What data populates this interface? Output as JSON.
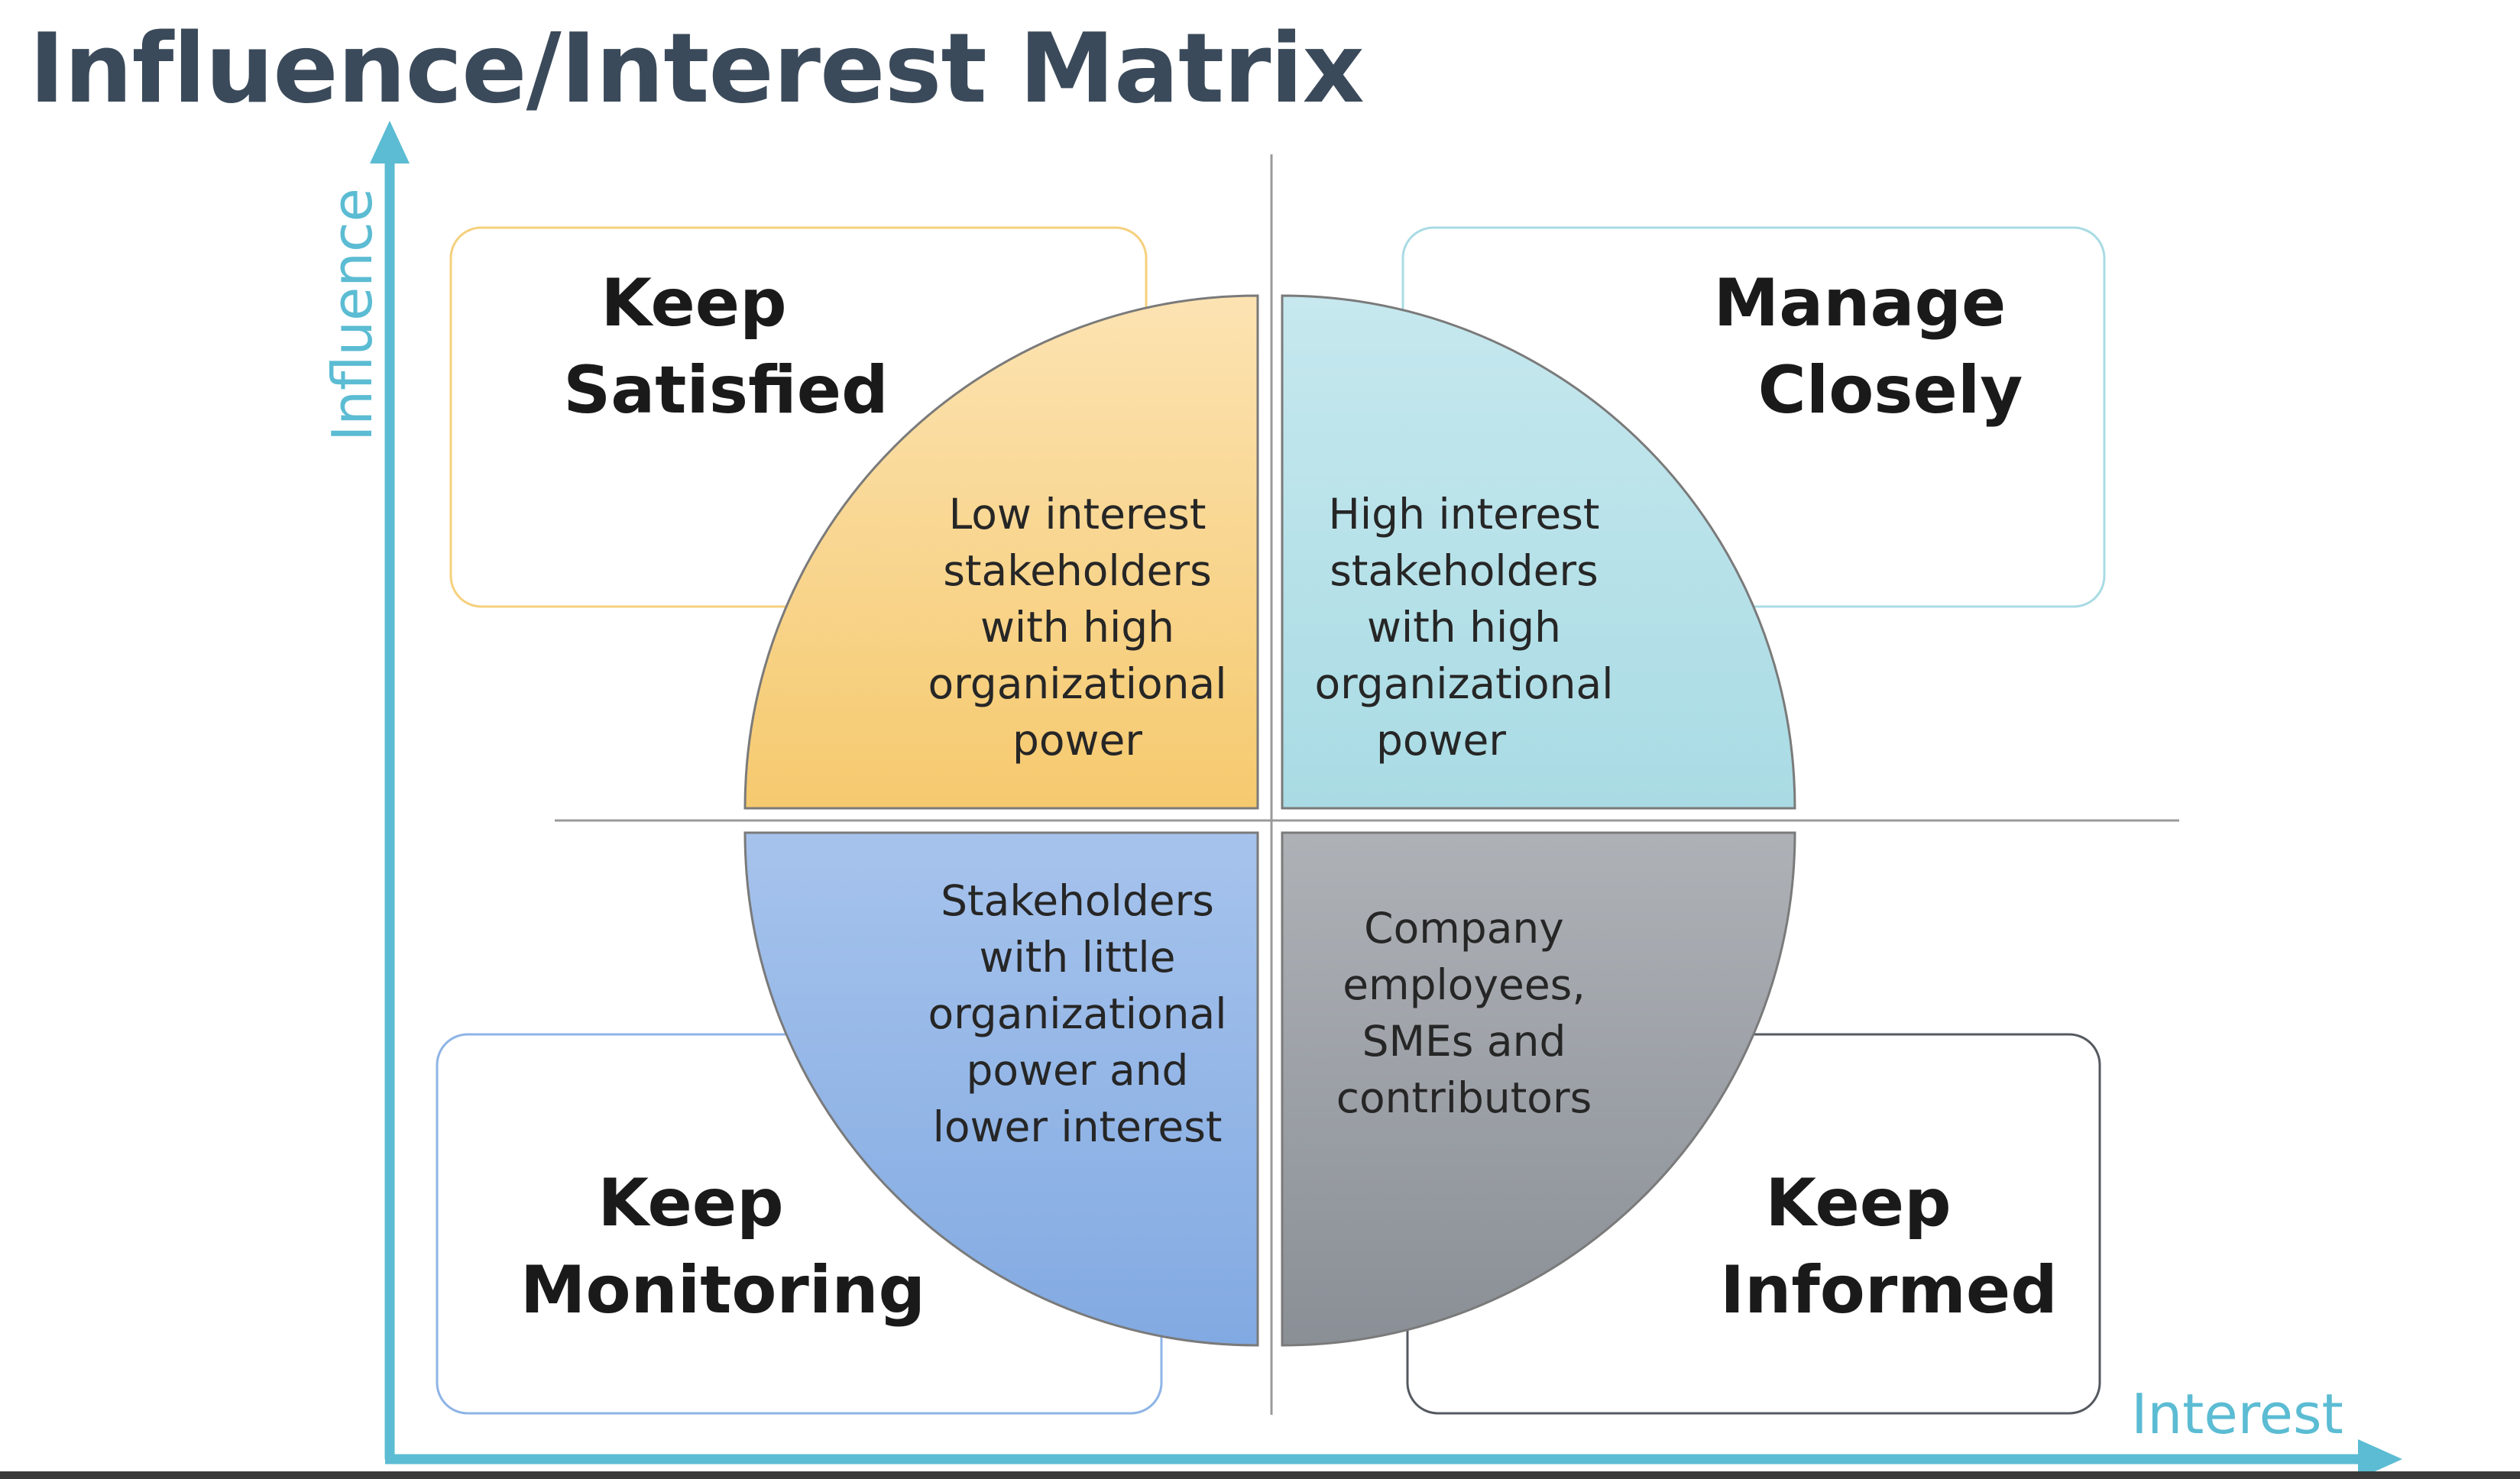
{
  "title": "Influence/Interest Matrix",
  "colors": {
    "title": "#3b4a5a",
    "axis": "#5bbcd3",
    "keep_satisfied": "#f5c96e",
    "manage_closely": "#a9dbe4",
    "keep_monitoring": "#8eb4e6",
    "keep_informed": "#9ea2a8"
  },
  "axes": {
    "y_label": "Influence",
    "x_label": "Interest"
  },
  "quadrants": {
    "top_left": {
      "title_lines": [
        "Keep",
        "Satisfied"
      ],
      "desc_lines": [
        "Low interest",
        "stakeholders",
        "with high",
        "organizational",
        "power"
      ]
    },
    "top_right": {
      "title_lines": [
        "Manage",
        "Closely"
      ],
      "desc_lines": [
        "High interest",
        "stakeholders",
        "with high",
        "organizational",
        "power"
      ]
    },
    "bottom_left": {
      "title_lines": [
        "Keep",
        "Monitoring"
      ],
      "desc_lines": [
        "Stakeholders",
        "with little",
        "organizational",
        "power and",
        "lower interest"
      ]
    },
    "bottom_right": {
      "title_lines": [
        "Keep",
        "Informed"
      ],
      "desc_lines": [
        "Company",
        "employees,",
        "SMEs and",
        "contributors"
      ]
    }
  }
}
